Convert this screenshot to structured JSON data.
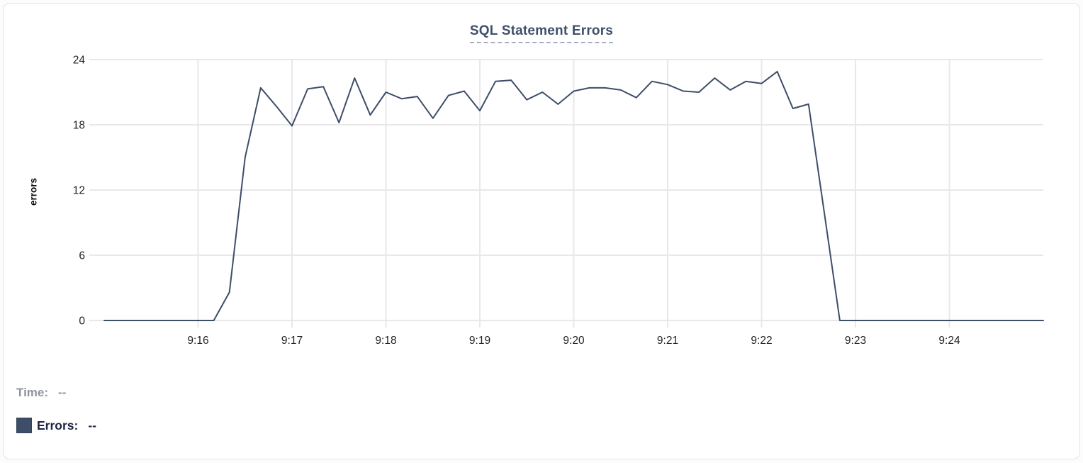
{
  "card": {
    "title": "SQL Statement Errors"
  },
  "chart_data": {
    "type": "line",
    "title": "SQL Statement Errors",
    "xlabel": "",
    "ylabel": "errors",
    "series_name": "Errors",
    "line_color": "#3e4d68",
    "grid": true,
    "ylim": [
      0,
      24
    ],
    "y_ticks": [
      0,
      6,
      12,
      18,
      24
    ],
    "x_tick_labels": [
      "9:16",
      "9:17",
      "9:18",
      "9:19",
      "9:20",
      "9:21",
      "9:22",
      "9:23",
      "9:24"
    ],
    "x_start": "9:15:00",
    "x_end": "9:25:00",
    "interval_seconds": 10,
    "values": [
      0,
      0,
      0,
      0,
      0,
      0,
      0,
      0,
      2.6,
      15,
      21.4,
      19.7,
      17.9,
      21.3,
      21.5,
      18.2,
      22.3,
      18.9,
      21,
      20.4,
      20.6,
      18.6,
      20.7,
      21.1,
      19.3,
      22,
      22.1,
      20.3,
      21,
      19.9,
      21.1,
      21.4,
      21.4,
      21.2,
      20.5,
      22,
      21.7,
      21.1,
      21,
      22.3,
      21.2,
      22,
      21.8,
      22.9,
      19.5,
      19.9,
      10,
      0,
      0,
      0,
      0,
      0,
      0,
      0,
      0,
      0,
      0,
      0,
      0,
      0,
      0
    ]
  },
  "tooltip": {
    "time_label": "Time:",
    "time_value": "--",
    "errors_label": "Errors:",
    "errors_value": "--"
  },
  "colors": {
    "line": "#3e4d68",
    "grid": "#e8e8ea",
    "title": "#3e506b",
    "title_underline": "#a7aec0",
    "axis_text": "#1f2126",
    "time_text": "#8e939d",
    "errors_text": "#1c2543",
    "swatch": "#3e4d68",
    "card_border": "#e4e4e7",
    "background": "#ffffff"
  }
}
